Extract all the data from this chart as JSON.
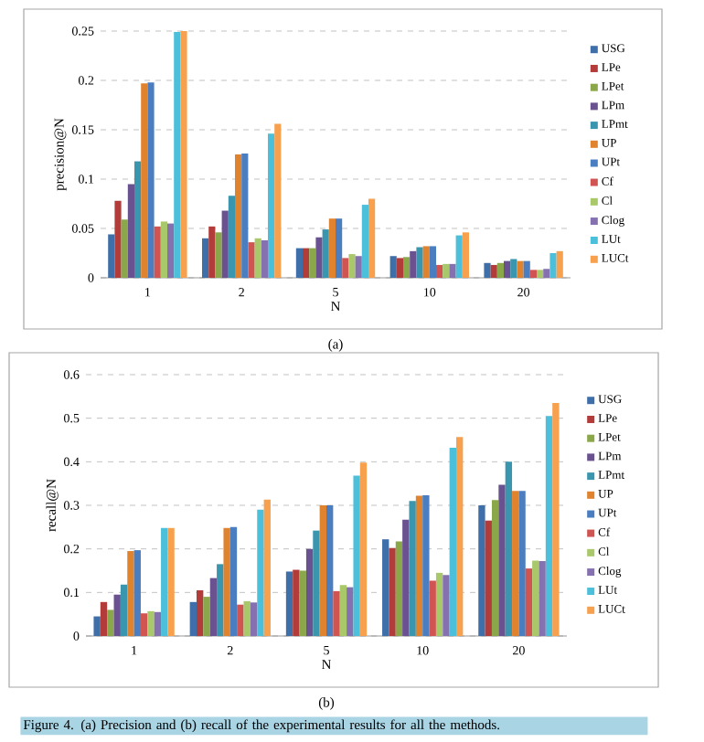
{
  "chart_data": [
    {
      "type": "bar",
      "xlabel": "N",
      "ylabel": "precision@N",
      "categories": [
        "1",
        "2",
        "5",
        "10",
        "20"
      ],
      "ylim": [
        0,
        0.25
      ],
      "yticks": [
        0,
        0.05,
        0.1,
        0.15,
        0.2,
        0.25
      ],
      "grid": "y",
      "legend": "right",
      "annotations": [
        "(a)"
      ],
      "series": [
        {
          "name": "USG",
          "color": "#3f6fa8",
          "values": [
            0.044,
            0.04,
            0.03,
            0.022,
            0.015
          ]
        },
        {
          "name": "LPe",
          "color": "#b23c3a",
          "values": [
            0.078,
            0.052,
            0.03,
            0.02,
            0.013
          ]
        },
        {
          "name": "LPet",
          "color": "#8aa84a",
          "values": [
            0.059,
            0.046,
            0.03,
            0.021,
            0.015
          ]
        },
        {
          "name": "LPm",
          "color": "#6a5290",
          "values": [
            0.095,
            0.068,
            0.041,
            0.027,
            0.017
          ]
        },
        {
          "name": "LPmt",
          "color": "#3a96ae",
          "values": [
            0.118,
            0.083,
            0.049,
            0.031,
            0.019
          ]
        },
        {
          "name": "UP",
          "color": "#e0832f",
          "values": [
            0.197,
            0.125,
            0.06,
            0.032,
            0.017
          ]
        },
        {
          "name": "UPt",
          "color": "#4a7ec0",
          "values": [
            0.198,
            0.126,
            0.06,
            0.032,
            0.017
          ]
        },
        {
          "name": "Cf",
          "color": "#d05452",
          "values": [
            0.052,
            0.036,
            0.02,
            0.013,
            0.008
          ]
        },
        {
          "name": "Cl",
          "color": "#a9c86a",
          "values": [
            0.057,
            0.04,
            0.024,
            0.014,
            0.008
          ]
        },
        {
          "name": "Clog",
          "color": "#8571b0",
          "values": [
            0.055,
            0.038,
            0.022,
            0.014,
            0.009
          ]
        },
        {
          "name": "LUt",
          "color": "#4cc0da",
          "values": [
            0.249,
            0.146,
            0.074,
            0.043,
            0.025
          ]
        },
        {
          "name": "LUCt",
          "color": "#f7a04e",
          "values": [
            0.25,
            0.156,
            0.08,
            0.046,
            0.027
          ]
        }
      ]
    },
    {
      "type": "bar",
      "xlabel": "N",
      "ylabel": "recall@N",
      "categories": [
        "1",
        "2",
        "5",
        "10",
        "20"
      ],
      "ylim": [
        0,
        0.6
      ],
      "yticks": [
        0,
        0.1,
        0.2,
        0.3,
        0.4,
        0.5,
        0.6
      ],
      "grid": "y",
      "legend": "right",
      "annotations": [
        "(b)",
        "Figure 4. (a) Precision and (b) recall of the experimental results for all the methods."
      ],
      "series": [
        {
          "name": "USG",
          "color": "#3f6fa8",
          "values": [
            0.045,
            0.078,
            0.148,
            0.222,
            0.3
          ]
        },
        {
          "name": "LPe",
          "color": "#b23c3a",
          "values": [
            0.078,
            0.105,
            0.152,
            0.202,
            0.265
          ]
        },
        {
          "name": "LPet",
          "color": "#8aa84a",
          "values": [
            0.06,
            0.09,
            0.15,
            0.217,
            0.312
          ]
        },
        {
          "name": "LPm",
          "color": "#6a5290",
          "values": [
            0.095,
            0.133,
            0.2,
            0.267,
            0.347
          ]
        },
        {
          "name": "LPmt",
          "color": "#3a96ae",
          "values": [
            0.118,
            0.165,
            0.242,
            0.31,
            0.4
          ]
        },
        {
          "name": "UP",
          "color": "#e0832f",
          "values": [
            0.195,
            0.248,
            0.3,
            0.322,
            0.333
          ]
        },
        {
          "name": "UPt",
          "color": "#4a7ec0",
          "values": [
            0.197,
            0.25,
            0.3,
            0.323,
            0.333
          ]
        },
        {
          "name": "Cf",
          "color": "#d05452",
          "values": [
            0.052,
            0.072,
            0.103,
            0.127,
            0.155
          ]
        },
        {
          "name": "Cl",
          "color": "#a9c86a",
          "values": [
            0.057,
            0.08,
            0.117,
            0.145,
            0.173
          ]
        },
        {
          "name": "Clog",
          "color": "#8571b0",
          "values": [
            0.055,
            0.077,
            0.112,
            0.14,
            0.172
          ]
        },
        {
          "name": "LUt",
          "color": "#4cc0da",
          "values": [
            0.248,
            0.29,
            0.368,
            0.432,
            0.505
          ]
        },
        {
          "name": "LUCt",
          "color": "#f7a04e",
          "values": [
            0.248,
            0.313,
            0.398,
            0.457,
            0.535
          ]
        }
      ]
    }
  ]
}
